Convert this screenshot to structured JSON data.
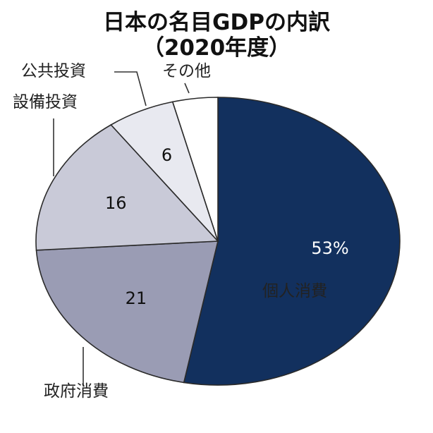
{
  "title": "日本の名目GDPの内訳",
  "subtitle": "（2020年度）",
  "chart_data": {
    "type": "pie",
    "title": "日本の名目GDPの内訳",
    "subtitle": "（2020年度）",
    "slices": [
      {
        "label": "個人消費",
        "value": 53,
        "value_label": "53%",
        "color": "#12305e"
      },
      {
        "label": "政府消費",
        "value": 21,
        "value_label": "21",
        "color": "#9a9cb4"
      },
      {
        "label": "設備投資",
        "value": 16,
        "value_label": "16",
        "color": "#c9cad8"
      },
      {
        "label": "公共投資",
        "value": 6,
        "value_label": "6",
        "color": "#e8e9f0"
      },
      {
        "label": "その他",
        "value": 4,
        "value_label": "",
        "color": "#ffffff"
      }
    ],
    "start": "12 o'clock",
    "direction": "clockwise"
  }
}
